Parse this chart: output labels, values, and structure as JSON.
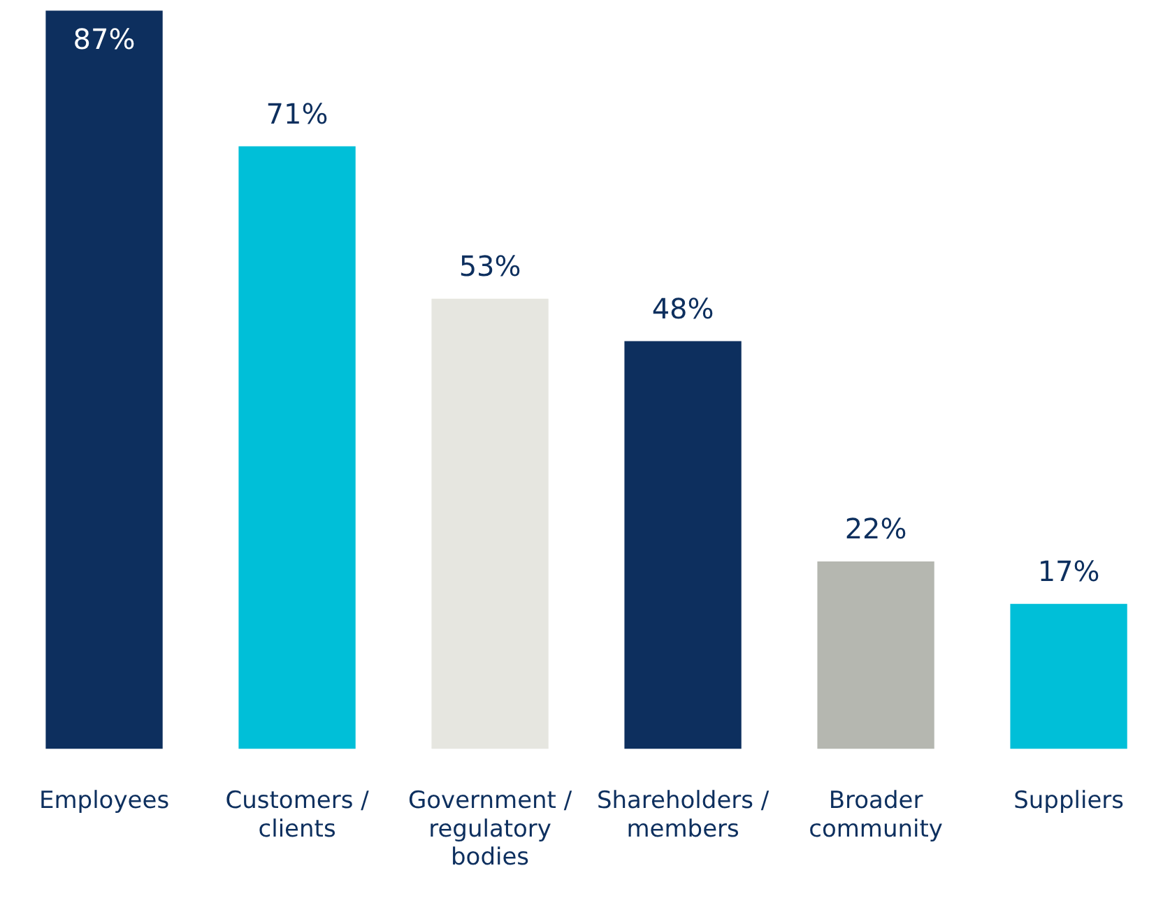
{
  "chart_data": {
    "type": "bar",
    "categories": [
      "Employees",
      "Customers / clients",
      "Government / regulatory bodies",
      "Shareholders / members",
      "Broader community",
      "Suppliers"
    ],
    "values": [
      87,
      71,
      53,
      48,
      22,
      17
    ],
    "colors": [
      "#0d2f5e",
      "#00bfd8",
      "#e6e6e0",
      "#0d2f5e",
      "#b5b7b0",
      "#00bfd8"
    ],
    "value_labels": [
      "87%",
      "71%",
      "53%",
      "48%",
      "22%",
      "17%"
    ],
    "grid": false,
    "legend": false
  }
}
